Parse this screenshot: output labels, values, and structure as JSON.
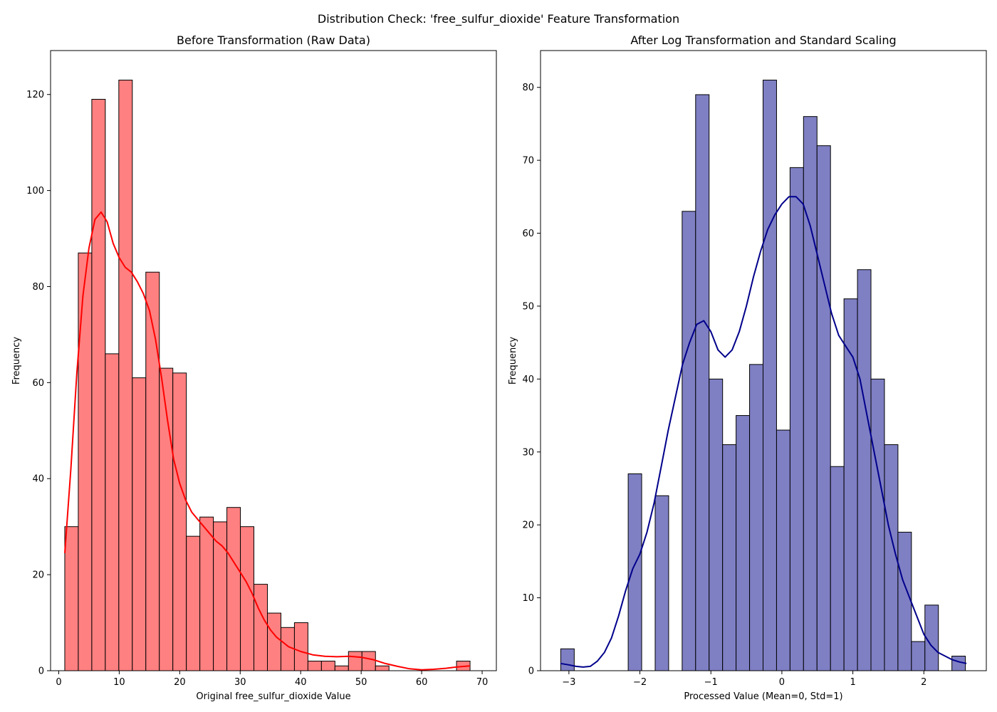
{
  "figure": {
    "title": "Distribution Check: 'free_sulfur_dioxide' Feature Transformation"
  },
  "chart_data": [
    {
      "type": "bar",
      "title": "Before Transformation (Raw Data)",
      "xlabel": "Original free_sulfur_dioxide Value",
      "ylabel": "Frequency",
      "xlim": [
        -1.35,
        72.35
      ],
      "ylim": [
        0,
        129.15
      ],
      "xticks": [
        0,
        10,
        20,
        30,
        40,
        50,
        60,
        70
      ],
      "yticks": [
        0,
        20,
        40,
        60,
        80,
        100,
        120
      ],
      "bin_start": 1,
      "bin_width": 2.2333,
      "values": [
        30,
        87,
        119,
        66,
        123,
        61,
        83,
        63,
        62,
        28,
        32,
        31,
        34,
        30,
        18,
        12,
        9,
        10,
        2,
        2,
        1,
        4,
        4,
        1,
        0,
        0,
        0,
        0,
        0,
        2
      ],
      "bar_color": "#ff8080",
      "kde_color": "#ff0000",
      "kde": {
        "x": [
          1,
          2,
          3,
          4,
          5,
          6,
          7,
          8,
          9,
          10,
          11,
          12,
          13,
          14,
          15,
          16,
          17,
          18,
          19,
          20,
          21,
          22,
          23,
          24,
          25,
          26,
          27,
          28,
          29,
          30,
          31,
          32,
          33,
          34,
          35,
          36,
          37,
          38,
          40,
          42,
          44,
          46,
          48,
          50,
          52,
          54,
          56,
          58,
          60,
          62,
          64,
          66,
          68
        ],
        "y": [
          24.5,
          42,
          62,
          78,
          88,
          94,
          95.5,
          93.5,
          89,
          86,
          84,
          83,
          81,
          78.5,
          75,
          69,
          61,
          52,
          44,
          39,
          35.5,
          33,
          31.5,
          30,
          28.5,
          27,
          26,
          24.5,
          22.5,
          20.5,
          18.5,
          16,
          13,
          10.5,
          8.5,
          7,
          6,
          5,
          4,
          3.3,
          3,
          2.9,
          3,
          2.8,
          2.3,
          1.5,
          0.9,
          0.4,
          0.2,
          0.3,
          0.5,
          0.8,
          1
        ]
      }
    },
    {
      "type": "bar",
      "title": "After Log Transformation and Standard Scaling",
      "xlabel": "Processed Value (Mean=0, Std=1)",
      "ylabel": "Frequency",
      "xlim": [
        -3.4,
        2.88
      ],
      "ylim": [
        0,
        85.05
      ],
      "xticks": [
        -3,
        -2,
        -1,
        0,
        1,
        2
      ],
      "yticks": [
        0,
        10,
        20,
        30,
        40,
        50,
        60,
        70,
        80
      ],
      "bin_start": -3.115,
      "bin_width": 0.19,
      "values": [
        3,
        0,
        0,
        0,
        0,
        27,
        0,
        24,
        0,
        63,
        79,
        40,
        31,
        35,
        42,
        81,
        33,
        69,
        76,
        72,
        28,
        51,
        55,
        40,
        31,
        19,
        4,
        9,
        0,
        2
      ],
      "bar_color": "#7f7fc4",
      "kde_color": "#00008b",
      "kde": {
        "x": [
          -3.12,
          -3.0,
          -2.9,
          -2.8,
          -2.7,
          -2.6,
          -2.5,
          -2.4,
          -2.3,
          -2.2,
          -2.1,
          -2.0,
          -1.9,
          -1.8,
          -1.7,
          -1.6,
          -1.5,
          -1.4,
          -1.3,
          -1.2,
          -1.1,
          -1.0,
          -0.9,
          -0.8,
          -0.7,
          -0.6,
          -0.5,
          -0.4,
          -0.3,
          -0.2,
          -0.1,
          0.0,
          0.1,
          0.2,
          0.3,
          0.4,
          0.5,
          0.6,
          0.7,
          0.8,
          0.9,
          1.0,
          1.1,
          1.2,
          1.3,
          1.4,
          1.5,
          1.6,
          1.7,
          1.8,
          1.9,
          2.0,
          2.1,
          2.2,
          2.3,
          2.4,
          2.5,
          2.6
        ],
        "y": [
          1,
          0.8,
          0.6,
          0.5,
          0.6,
          1.3,
          2.5,
          4.5,
          7.5,
          11,
          14,
          16,
          19,
          23,
          28,
          33,
          37.5,
          42,
          45,
          47.5,
          48,
          46.5,
          44,
          43,
          44,
          46.5,
          50,
          54,
          57.5,
          60.5,
          62.5,
          64,
          65,
          65,
          64,
          61,
          57,
          53,
          49,
          46,
          44.5,
          43,
          40,
          35,
          30,
          25,
          20,
          16,
          12.5,
          10,
          7.5,
          5,
          3.5,
          2.5,
          2,
          1.5,
          1.2,
          1
        ]
      }
    }
  ]
}
